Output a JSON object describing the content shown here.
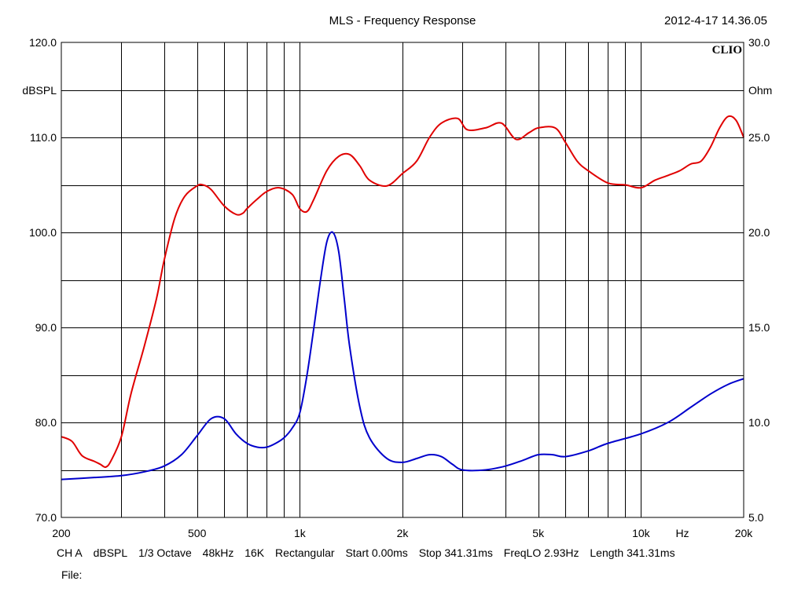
{
  "header": {
    "title": "MLS - Frequency Response",
    "datetime": "2012-4-17 14.36.05",
    "brand": "CLIO"
  },
  "footer": {
    "channel": "CH A",
    "unit": "dBSPL",
    "smoothing": "1/3 Octave",
    "sample_rate": "48kHz",
    "size": "16K",
    "window": "Rectangular",
    "start": "Start 0.00ms",
    "stop": "Stop 341.31ms",
    "freqlo": "FreqLO 2.93Hz",
    "length": "Length 341.31ms",
    "file_label": "File:"
  },
  "colors": {
    "spl": "#e00000",
    "impedance": "#0000cc",
    "grid": "#000000"
  },
  "chart_data": {
    "type": "line",
    "title": "MLS - Frequency Response",
    "x_scale": "log",
    "xlim": [
      200,
      20000
    ],
    "x_tick_labels": [
      {
        "value": 200,
        "label": "200"
      },
      {
        "value": 500,
        "label": "500"
      },
      {
        "value": 1000,
        "label": "1k"
      },
      {
        "value": 2000,
        "label": "2k"
      },
      {
        "value": 5000,
        "label": "5k"
      },
      {
        "value": 10000,
        "label": "10k"
      },
      {
        "value": 20000,
        "label": "20k"
      }
    ],
    "x_unit_label": "Hz",
    "x_grid": [
      300,
      400,
      500,
      600,
      700,
      800,
      900,
      1000,
      2000,
      3000,
      4000,
      5000,
      6000,
      7000,
      8000,
      9000,
      10000
    ],
    "y_left": {
      "label": "dBSPL",
      "ylim": [
        70,
        120
      ],
      "ticks": [
        "70.0",
        "80.0",
        "90.0",
        "100.0",
        "110.0",
        "120.0"
      ]
    },
    "y_right": {
      "label": "Ohm",
      "ylim": [
        5,
        30
      ],
      "ticks": [
        "5.0",
        "10.0",
        "15.0",
        "20.0",
        "25.0",
        "30.0"
      ]
    },
    "grid": true,
    "series": [
      {
        "id": "spl",
        "axis": "left",
        "color": "#e00000",
        "x": [
          200,
          215,
          230,
          250,
          260,
          270,
          280,
          300,
          320,
          350,
          380,
          400,
          430,
          460,
          500,
          520,
          550,
          600,
          650,
          680,
          700,
          750,
          800,
          870,
          950,
          1000,
          1050,
          1100,
          1200,
          1300,
          1400,
          1500,
          1600,
          1800,
          2000,
          2200,
          2400,
          2600,
          2900,
          3100,
          3500,
          3900,
          4300,
          4700,
          5000,
          5600,
          6000,
          6500,
          7000,
          8000,
          9000,
          10000,
          11000,
          12000,
          13000,
          14000,
          15000,
          16000,
          17000,
          18000,
          19000,
          20000
        ],
        "y": [
          78.5,
          78.0,
          76.5,
          75.9,
          75.6,
          75.3,
          76.0,
          78.5,
          83.0,
          88.0,
          93.0,
          97.0,
          101.5,
          103.8,
          104.9,
          105.0,
          104.5,
          102.8,
          101.9,
          102.0,
          102.5,
          103.5,
          104.3,
          104.7,
          104.0,
          102.5,
          102.2,
          103.5,
          106.5,
          108.0,
          108.2,
          107.0,
          105.5,
          104.9,
          106.2,
          107.5,
          110.0,
          111.5,
          112.0,
          110.8,
          111.0,
          111.5,
          109.8,
          110.5,
          111.0,
          111.0,
          109.5,
          107.5,
          106.5,
          105.2,
          105.0,
          104.7,
          105.5,
          106.0,
          106.5,
          107.2,
          107.5,
          109.0,
          111.0,
          112.2,
          111.8,
          110.0
        ]
      },
      {
        "id": "impedance",
        "axis": "right",
        "color": "#0000cc",
        "x": [
          200,
          250,
          300,
          350,
          400,
          450,
          500,
          550,
          600,
          650,
          700,
          750,
          800,
          850,
          900,
          950,
          1000,
          1050,
          1100,
          1150,
          1200,
          1250,
          1300,
          1350,
          1400,
          1500,
          1600,
          1800,
          2000,
          2200,
          2400,
          2600,
          2800,
          3000,
          3500,
          4000,
          4500,
          5000,
          5500,
          6000,
          7000,
          8000,
          10000,
          12000,
          14000,
          16000,
          18000,
          20000
        ],
        "y": [
          7.0,
          7.1,
          7.2,
          7.4,
          7.7,
          8.3,
          9.3,
          10.2,
          10.2,
          9.4,
          8.9,
          8.7,
          8.7,
          8.9,
          9.2,
          9.7,
          10.5,
          12.5,
          15.0,
          17.5,
          19.5,
          20.0,
          19.0,
          16.5,
          14.0,
          10.8,
          9.2,
          8.1,
          7.9,
          8.1,
          8.3,
          8.2,
          7.8,
          7.5,
          7.5,
          7.7,
          8.0,
          8.3,
          8.3,
          8.2,
          8.5,
          8.9,
          9.4,
          10.0,
          10.8,
          11.5,
          12.0,
          12.3
        ]
      }
    ]
  }
}
